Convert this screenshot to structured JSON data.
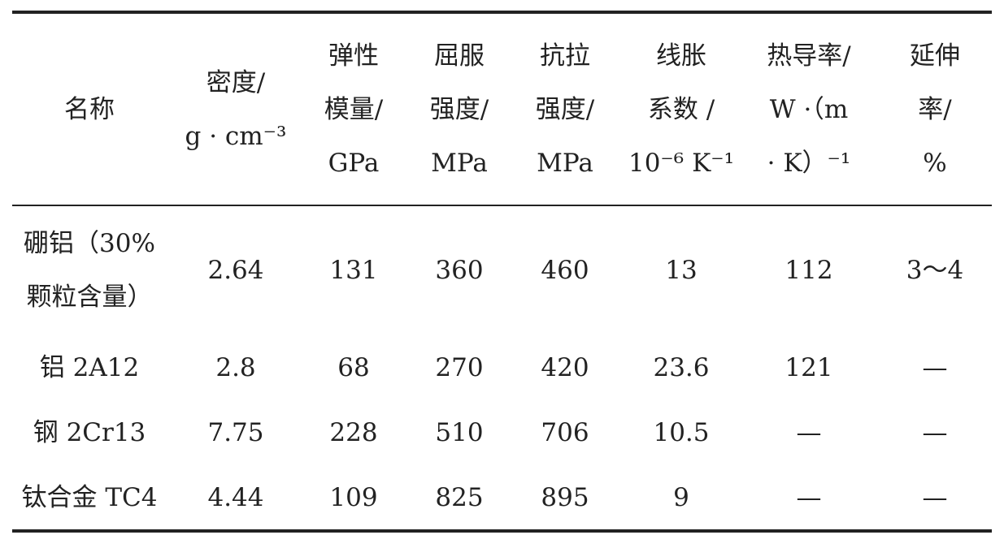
{
  "table": {
    "headers": [
      [
        "名称"
      ],
      [
        "密度/",
        "g · cm⁻³"
      ],
      [
        "弹性",
        "模量/",
        "GPa"
      ],
      [
        "屈服",
        "强度/",
        "MPa"
      ],
      [
        "抗拉",
        "强度/",
        "MPa"
      ],
      [
        "线胀",
        "系数 /",
        "10⁻⁶ K⁻¹"
      ],
      [
        "热导率/",
        "W ·（m",
        "· K）⁻¹"
      ],
      [
        "延伸",
        "率/",
        "%"
      ]
    ],
    "rows": [
      [
        [
          "硼铝（30%",
          "颗粒含量）"
        ],
        [
          "2.64"
        ],
        [
          "131"
        ],
        [
          "360"
        ],
        [
          "460"
        ],
        [
          "13"
        ],
        [
          "112"
        ],
        [
          "3～4"
        ]
      ],
      [
        [
          "铝 2A12"
        ],
        [
          "2.8"
        ],
        [
          "68"
        ],
        [
          "270"
        ],
        [
          "420"
        ],
        [
          "23.6"
        ],
        [
          "121"
        ],
        [
          "—"
        ]
      ],
      [
        [
          "钢 2Cr13"
        ],
        [
          "7.75"
        ],
        [
          "228"
        ],
        [
          "510"
        ],
        [
          "706"
        ],
        [
          "10.5"
        ],
        [
          "—"
        ],
        [
          "—"
        ]
      ],
      [
        [
          "钛合金 TC4"
        ],
        [
          "4.44"
        ],
        [
          "109"
        ],
        [
          "825"
        ],
        [
          "895"
        ],
        [
          "9"
        ],
        [
          "—"
        ],
        [
          "—"
        ]
      ]
    ]
  }
}
